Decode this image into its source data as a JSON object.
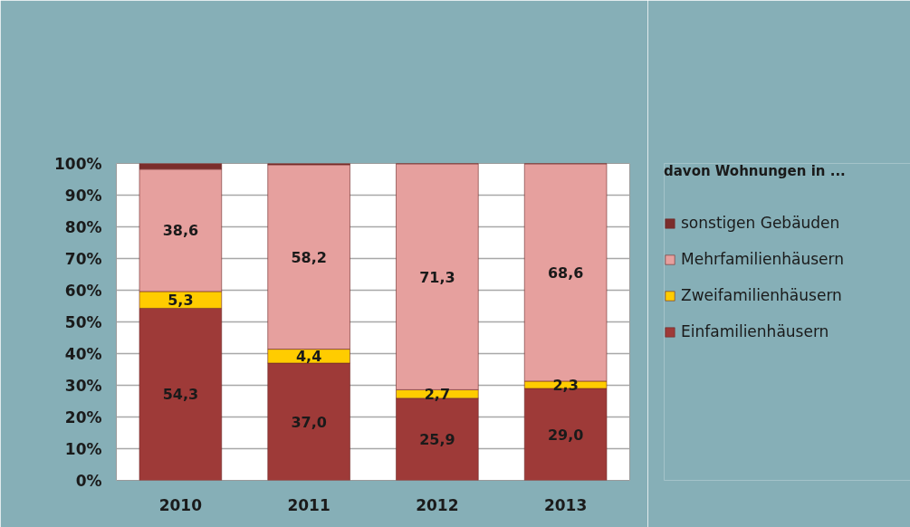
{
  "chart_data": {
    "type": "bar",
    "stacked": true,
    "categories": [
      "2010",
      "2011",
      "2012",
      "2013"
    ],
    "legend_title": "davon Wohnungen in ...",
    "series": [
      {
        "name": "Einfamilienhäusern",
        "color": "#9e3a38",
        "values": [
          54.3,
          37.0,
          25.9,
          29.0
        ],
        "value_labels": [
          "54,3",
          "37,0",
          "25,9",
          "29,0"
        ]
      },
      {
        "name": "Zweifamilienhäusern",
        "color": "#ffcc00",
        "values": [
          5.3,
          4.4,
          2.7,
          2.3
        ],
        "value_labels": [
          "5,3",
          "4,4",
          "2,7",
          "2,3"
        ]
      },
      {
        "name": "Mehrfamilienhäusern",
        "color": "#e6a09e",
        "values": [
          38.6,
          58.2,
          71.3,
          68.6
        ],
        "value_labels": [
          "38,6",
          "58,2",
          "71,3",
          "68,6"
        ]
      },
      {
        "name": "sonstigen Gebäuden",
        "color": "#7b2d2b",
        "values": [
          1.8,
          0.4,
          0.1,
          0.1
        ]
      }
    ],
    "ylim": [
      0,
      100
    ],
    "yticks": [
      {
        "value": 0,
        "label": "0%"
      },
      {
        "value": 10,
        "label": "10%"
      },
      {
        "value": 20,
        "label": "20%"
      },
      {
        "value": 30,
        "label": "30%"
      },
      {
        "value": 40,
        "label": "40%"
      },
      {
        "value": 50,
        "label": "50%"
      },
      {
        "value": 60,
        "label": "60%"
      },
      {
        "value": 70,
        "label": "70%"
      },
      {
        "value": 80,
        "label": "80%"
      },
      {
        "value": 90,
        "label": "90%"
      },
      {
        "value": 100,
        "label": "100%"
      }
    ],
    "grid": "y",
    "legend": "right"
  }
}
